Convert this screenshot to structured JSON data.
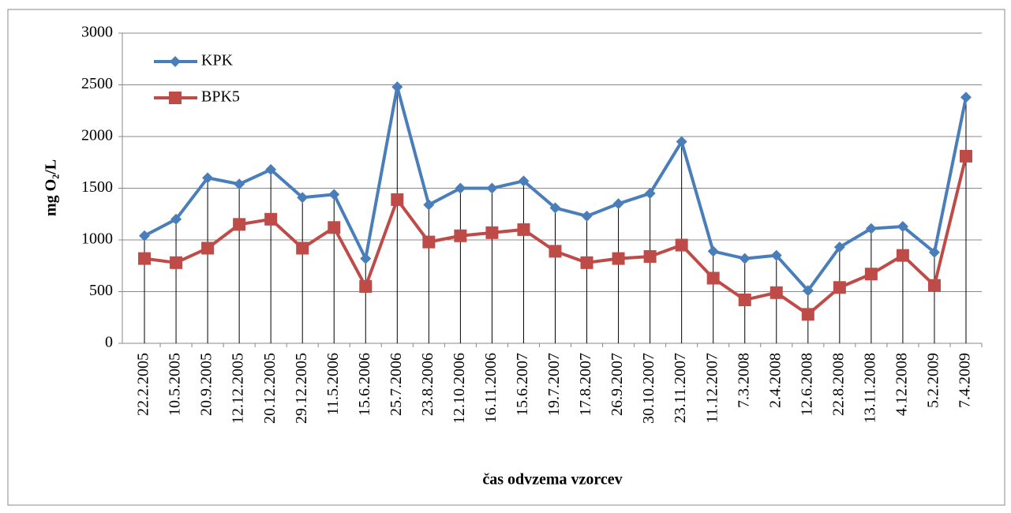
{
  "chart_data": {
    "type": "line",
    "x_label": "čas odvzema vzorcev",
    "y_label": "mg O₂/L",
    "categories": [
      "22.2.2005",
      "10.5.2005",
      "20.9.2005",
      "12.12.2005",
      "20.12.2005",
      "29.12.2005",
      "11.5.2006",
      "15.6.2006",
      "25.7.2006",
      "23.8.2006",
      "12.10.2006",
      "16.11.2006",
      "15.6.2007",
      "19.7.2007",
      "17.8.2007",
      "26.9.2007",
      "30.10.2007",
      "23.11.2007",
      "11.12.2007",
      "7.3.2008",
      "2.4.2008",
      "12.6.2008",
      "22.8.2008",
      "13.11.2008",
      "4.12.2008",
      "5.2.2009",
      "7.4.2009"
    ],
    "series": [
      {
        "name": "KPK",
        "color": "#4a7ebb",
        "marker": "diamond",
        "values": [
          1040,
          1200,
          1600,
          1540,
          1680,
          1410,
          1440,
          820,
          2480,
          1340,
          1500,
          1500,
          1570,
          1310,
          1230,
          1350,
          1450,
          1950,
          890,
          820,
          850,
          510,
          930,
          1110,
          1130,
          880,
          2380
        ]
      },
      {
        "name": "BPK5",
        "color": "#be4b48",
        "marker": "square",
        "values": [
          820,
          780,
          920,
          1150,
          1200,
          920,
          1120,
          550,
          1390,
          980,
          1040,
          1070,
          1100,
          890,
          780,
          820,
          840,
          950,
          630,
          420,
          490,
          280,
          540,
          670,
          850,
          560,
          1810
        ]
      }
    ],
    "ylim": [
      0,
      3000
    ],
    "yticks": [
      0,
      500,
      1000,
      1500,
      2000,
      2500,
      3000
    ],
    "grid": true,
    "drop_lines": true,
    "legend": "top-left"
  }
}
